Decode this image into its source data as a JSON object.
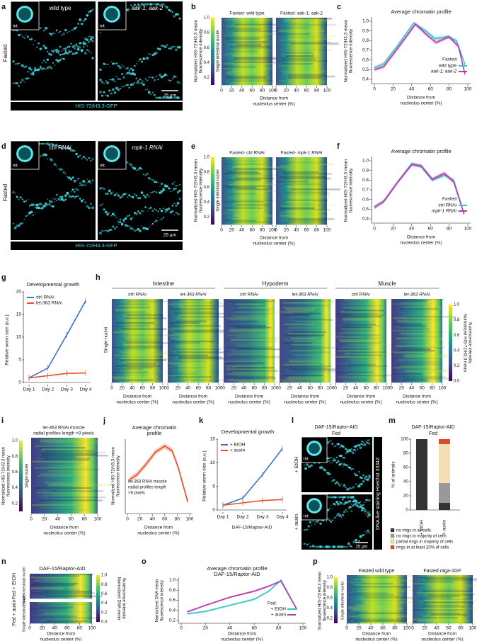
{
  "panels": {
    "a": {
      "letter": "a",
      "row_label": "Fasted",
      "images": [
        {
          "label": "wild type",
          "inset": "int"
        },
        {
          "label": "aak-1; aak-2",
          "inset": "int"
        }
      ],
      "scalebar": "25 µm",
      "caption": "HIS-72/H3.3-GFP"
    },
    "b": {
      "letter": "b",
      "ylabel": [
        "Normalized HIS-72/H3.3 mean",
        "fluorescence intensity"
      ],
      "cbar_ticks": [
        "0.2",
        "0.4",
        "0.6",
        "0.8",
        "1.0"
      ],
      "nuclei_label": "Single intestinal nuclei",
      "heatmaps": [
        "Fasted- wild type",
        "Fasted- aak-1; aak-2"
      ],
      "xticks": [
        "0",
        "20",
        "40",
        "60",
        "80",
        "100"
      ],
      "xlabel": [
        "Distance from",
        "nucleolus center (%)"
      ]
    },
    "c": {
      "letter": "c",
      "title": "Average chromatin profile",
      "ylabel": [
        "Normalized HIS-72/H3.3 mean",
        "fluorescence intensity"
      ],
      "yticks": [
        "0.4",
        "0.5",
        "0.6",
        "0.7",
        "0.8",
        "0.9",
        "1.0"
      ],
      "xticks": [
        "0",
        "20",
        "40",
        "60",
        "80",
        "100"
      ],
      "xlabel": [
        "Distance from",
        "nucleolus center (%)"
      ],
      "legend_title": "Fasted:",
      "legend": [
        "wild type",
        "aak-1; aak-2"
      ]
    },
    "d": {
      "letter": "d",
      "row_label": "Fasted",
      "images": [
        {
          "label": "ctrl RNAi",
          "inset": "int"
        },
        {
          "label": "mpk-1 RNAi",
          "inset": "int"
        }
      ],
      "scalebar": "25 µm",
      "caption": "HIS-72/H3.3-GFP"
    },
    "e": {
      "letter": "e",
      "ylabel": [
        "Normalized HIS-72/H3.3 mean",
        "fluorescence intensity"
      ],
      "cbar_ticks": [
        "0.2",
        "0.4",
        "0.6",
        "0.8",
        "1.0"
      ],
      "nuclei_label": "Single intestinal nuclei",
      "heatmaps": [
        "Fasted- ctrl RNAi",
        "Fasted- mpk-1 RNAi"
      ],
      "xticks": [
        "0",
        "20",
        "40",
        "60",
        "80",
        "100"
      ],
      "xlabel": [
        "Distance from",
        "nucleolus center (%)"
      ]
    },
    "f": {
      "letter": "f",
      "title": "Average chromatin profile",
      "ylabel": [
        "Normalized HIS-72/H3.3 mean",
        "fluorescence intensity"
      ],
      "yticks": [
        "0.4",
        "0.5",
        "0.6",
        "0.7",
        "0.8",
        "0.9",
        "1.0"
      ],
      "xticks": [
        "0",
        "20",
        "40",
        "60",
        "80",
        "100"
      ],
      "xlabel": [
        "Distance from",
        "nucleolus center (%)"
      ],
      "legend_title": "Fasted:",
      "legend": [
        "ctrl RNAi",
        "mpk-1 RNAi"
      ]
    },
    "g": {
      "letter": "g",
      "title": "Developmental growth",
      "ylabel": "Relative worm size (a.u.)",
      "yticks": [
        "0",
        "5",
        "10",
        "15",
        "20"
      ],
      "xticks": [
        "Day 1",
        "Day 2",
        "Day 3",
        "Day 4"
      ],
      "legend": [
        "ctrl RNAi",
        "let-363 RNAi"
      ]
    },
    "h": {
      "letter": "h",
      "groups": [
        "Intestine",
        "Hypoderm",
        "Muscle"
      ],
      "heatmaps": [
        "ctrl RNAi",
        "let-363 RNAi",
        "ctrl RNAi",
        "let-363 RNAi",
        "ctrl RNAi",
        "let-363 RNAi"
      ],
      "nuclei_label": "Single nuclei",
      "cbar_ticks": [
        "0.0",
        "0.2",
        "0.4",
        "0.6",
        "0.8",
        "1.0"
      ],
      "cbar_label": [
        "Normalized HIS-72/H3.3 mean",
        "fluorescence intensity"
      ],
      "xticks": [
        "0",
        "20",
        "40",
        "60",
        "80",
        "100"
      ],
      "xlabel": [
        "Distance from",
        "nucleolus center (%)"
      ]
    },
    "i": {
      "letter": "i",
      "title": [
        "let-363 RNAi muscle",
        "radial profiles length >9 pixels"
      ],
      "ylabel": [
        "Normalized HIS-72/H3.3 mean",
        "fluorescence intensity"
      ],
      "cbar_ticks": [
        "0.2",
        "0.4",
        "0.6",
        "0.8",
        "1.0"
      ],
      "nuclei_label": "Single nuclei",
      "xticks": [
        "0",
        "20",
        "40",
        "60",
        "80",
        "100"
      ],
      "xlabel": [
        "Distance from",
        "nucleolus center (%)"
      ]
    },
    "j": {
      "letter": "j",
      "title": [
        "Average chromatin",
        "profile"
      ],
      "ylabel": [
        "Normalized HIS-72/H3.3 mean",
        "fluorescence intensity"
      ],
      "annotation": [
        "let-363 RNAi muscle",
        "radial profiles length",
        ">9 pixels"
      ],
      "xticks": [
        "0",
        "20",
        "40",
        "60",
        "80",
        "100"
      ],
      "xlabel": [
        "Distance from",
        "nucleolus center (%)"
      ]
    },
    "k": {
      "letter": "k",
      "title": "Developmental growth",
      "ylabel": "Relative worm size (a.u.)",
      "yticks": [
        "0",
        "5",
        "10",
        "15"
      ],
      "xticks": [
        "Day 1",
        "Day 2",
        "Day 3",
        "Day 4"
      ],
      "xlabel": "DAF-15/Raptor-AID",
      "legend": [
        "+ EtOH",
        "+ auxin"
      ]
    },
    "l": {
      "letter": "l",
      "title": [
        "DAF-15/Raptor-AID",
        "Fed"
      ],
      "rows": [
        "+ EtOH",
        "+ auxin"
      ],
      "inset": "int",
      "side_label": "DNA live staining Hoechst 33342",
      "scalebar": "25 µm"
    },
    "m": {
      "letter": "m",
      "title": [
        "DAF-15/Raptor-AID",
        "Fed"
      ],
      "ylabel": "% of animals",
      "yticks": [
        "0",
        "20",
        "40",
        "60",
        "80",
        "100"
      ],
      "xticks": [
        "+ EtOH",
        "+ auxin"
      ],
      "legend": [
        "no rings in all cells",
        "no rings in majority of cells",
        "partial rings in majority of cells",
        "rings in at least 20% of cells"
      ]
    },
    "n": {
      "letter": "n",
      "title": "DAF-15/Raptor-AID",
      "rows": [
        "Fed + EtOH",
        "Fed + auxin"
      ],
      "nuclei_label": "Single intestinal nuclei",
      "cbar_ticks": [
        "0.0",
        "0.2",
        "0.4",
        "0.6",
        "0.8",
        "1.0"
      ],
      "cbar_label": [
        "Normalized DNA mean",
        "fluorescence intensity"
      ],
      "xticks": [
        "0",
        "20",
        "40",
        "60",
        "80",
        "100"
      ],
      "xlabel": [
        "Distance from",
        "nucleolus center (%)"
      ]
    },
    "o": {
      "letter": "o",
      "title": [
        "Average chromatin profile",
        "DAF-15/Raptor-AID"
      ],
      "ylabel": [
        "Normalized DNA mean",
        "fluorescence intensity"
      ],
      "yticks": [
        "0.2",
        "0.4",
        "0.6",
        "0.8",
        "1.0"
      ],
      "xticks": [
        "0",
        "20",
        "40",
        "60",
        "80",
        "100"
      ],
      "xlabel": [
        "Distance from",
        "nucleolus center (%)"
      ],
      "legend_title": "Fed:",
      "legend": [
        "+ EtOH",
        "+ auxin"
      ]
    },
    "p": {
      "letter": "p",
      "heatmaps": [
        "Fasted wild type",
        "Fasted raga-1GF"
      ],
      "ylabel": [
        "Normalized HIS-72/H3.3 mean",
        "fluorescence intensity"
      ],
      "nuclei_label": "Single intestinal nuclei",
      "cbar_ticks": [
        "0.2",
        "0.4",
        "0.6",
        "0.8",
        "1.0"
      ],
      "xticks": [
        "0",
        "20",
        "40",
        "60",
        "80",
        "100"
      ],
      "xlabel": [
        "Distance from",
        "nucleolus center (%)"
      ]
    }
  }
}
